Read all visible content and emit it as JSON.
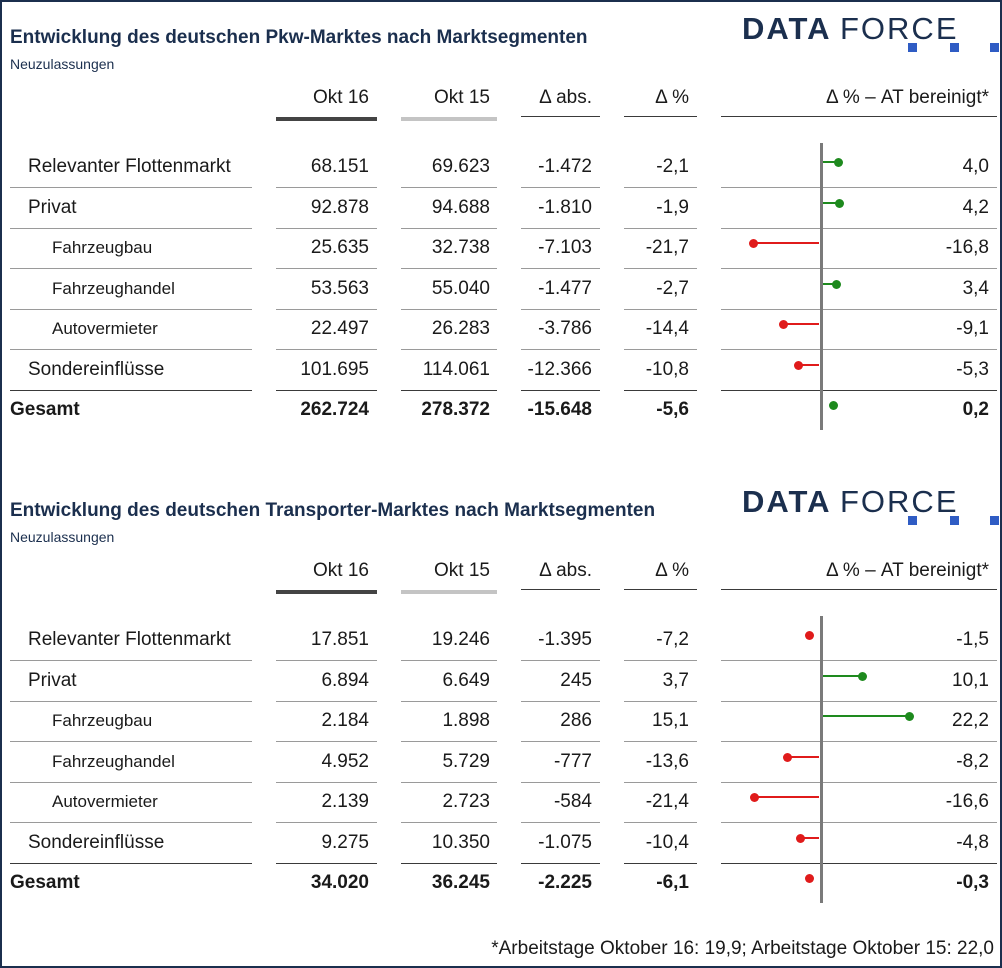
{
  "colors": {
    "positive": "#1e8a1e",
    "negative": "#e01b1b",
    "brand": "#1b2f4e",
    "logo_squares": "#2f5cc4"
  },
  "logo_text": {
    "part1": "DATA",
    "part2": "FORCE"
  },
  "columns": {
    "okt16": "Okt 16",
    "okt15": "Okt 15",
    "delta_abs": "Δ abs.",
    "delta_pct": "Δ %",
    "delta_at": "Δ % – AT bereinigt*"
  },
  "tables": [
    {
      "title": "Entwicklung des deutschen Pkw-Marktes nach Marktsegmenten",
      "subtitle": "Neuzulassungen",
      "rows": [
        {
          "label": "Relevanter Flottenmarkt",
          "level": 0,
          "okt16": "68.151",
          "okt15": "69.623",
          "abs": "-1.472",
          "pct": "-2,1",
          "at": "4,0",
          "at_value": 4.0
        },
        {
          "label": "Privat",
          "level": 0,
          "okt16": "92.878",
          "okt15": "94.688",
          "abs": "-1.810",
          "pct": "-1,9",
          "at": "4,2",
          "at_value": 4.2
        },
        {
          "label": "Fahrzeugbau",
          "level": 1,
          "okt16": "25.635",
          "okt15": "32.738",
          "abs": "-7.103",
          "pct": "-21,7",
          "at": "-16,8",
          "at_value": -16.8
        },
        {
          "label": "Fahrzeughandel",
          "level": 1,
          "okt16": "53.563",
          "okt15": "55.040",
          "abs": "-1.477",
          "pct": "-2,7",
          "at": "3,4",
          "at_value": 3.4
        },
        {
          "label": "Autovermieter",
          "level": 1,
          "okt16": "22.497",
          "okt15": "26.283",
          "abs": "-3.786",
          "pct": "-14,4",
          "at": "-9,1",
          "at_value": -9.1
        },
        {
          "label": "Sondereinflüsse",
          "level": 0,
          "okt16": "101.695",
          "okt15": "114.061",
          "abs": "-12.366",
          "pct": "-10,8",
          "at": "-5,3",
          "at_value": -5.3
        },
        {
          "label": "Gesamt",
          "level": -1,
          "okt16": "262.724",
          "okt15": "278.372",
          "abs": "-15.648",
          "pct": "-5,6",
          "at": "0,2",
          "at_value": 0.2
        }
      ]
    },
    {
      "title": "Entwicklung des deutschen Transporter-Marktes nach Marktsegmenten",
      "subtitle": "Neuzulassungen",
      "rows": [
        {
          "label": "Relevanter Flottenmarkt",
          "level": 0,
          "okt16": "17.851",
          "okt15": "19.246",
          "abs": "-1.395",
          "pct": "-7,2",
          "at": "-1,5",
          "at_value": -1.5
        },
        {
          "label": "Privat",
          "level": 0,
          "okt16": "6.894",
          "okt15": "6.649",
          "abs": "245",
          "pct": "3,7",
          "at": "10,1",
          "at_value": 10.1
        },
        {
          "label": "Fahrzeugbau",
          "level": 1,
          "okt16": "2.184",
          "okt15": "1.898",
          "abs": "286",
          "pct": "15,1",
          "at": "22,2",
          "at_value": 22.2
        },
        {
          "label": "Fahrzeughandel",
          "level": 1,
          "okt16": "4.952",
          "okt15": "5.729",
          "abs": "-777",
          "pct": "-13,6",
          "at": "-8,2",
          "at_value": -8.2
        },
        {
          "label": "Autovermieter",
          "level": 1,
          "okt16": "2.139",
          "okt15": "2.723",
          "abs": "-584",
          "pct": "-21,4",
          "at": "-16,6",
          "at_value": -16.6
        },
        {
          "label": "Sondereinflüsse",
          "level": 0,
          "okt16": "9.275",
          "okt15": "10.350",
          "abs": "-1.075",
          "pct": "-10,4",
          "at": "-4,8",
          "at_value": -4.8
        },
        {
          "label": "Gesamt",
          "level": -1,
          "okt16": "34.020",
          "okt15": "36.245",
          "abs": "-2.225",
          "pct": "-6,1",
          "at": "-0,3",
          "at_value": -0.3
        }
      ]
    }
  ],
  "footnote": "*Arbeitstage Oktober 16: 19,9; Arbeitstage Oktober 15: 22,0"
}
